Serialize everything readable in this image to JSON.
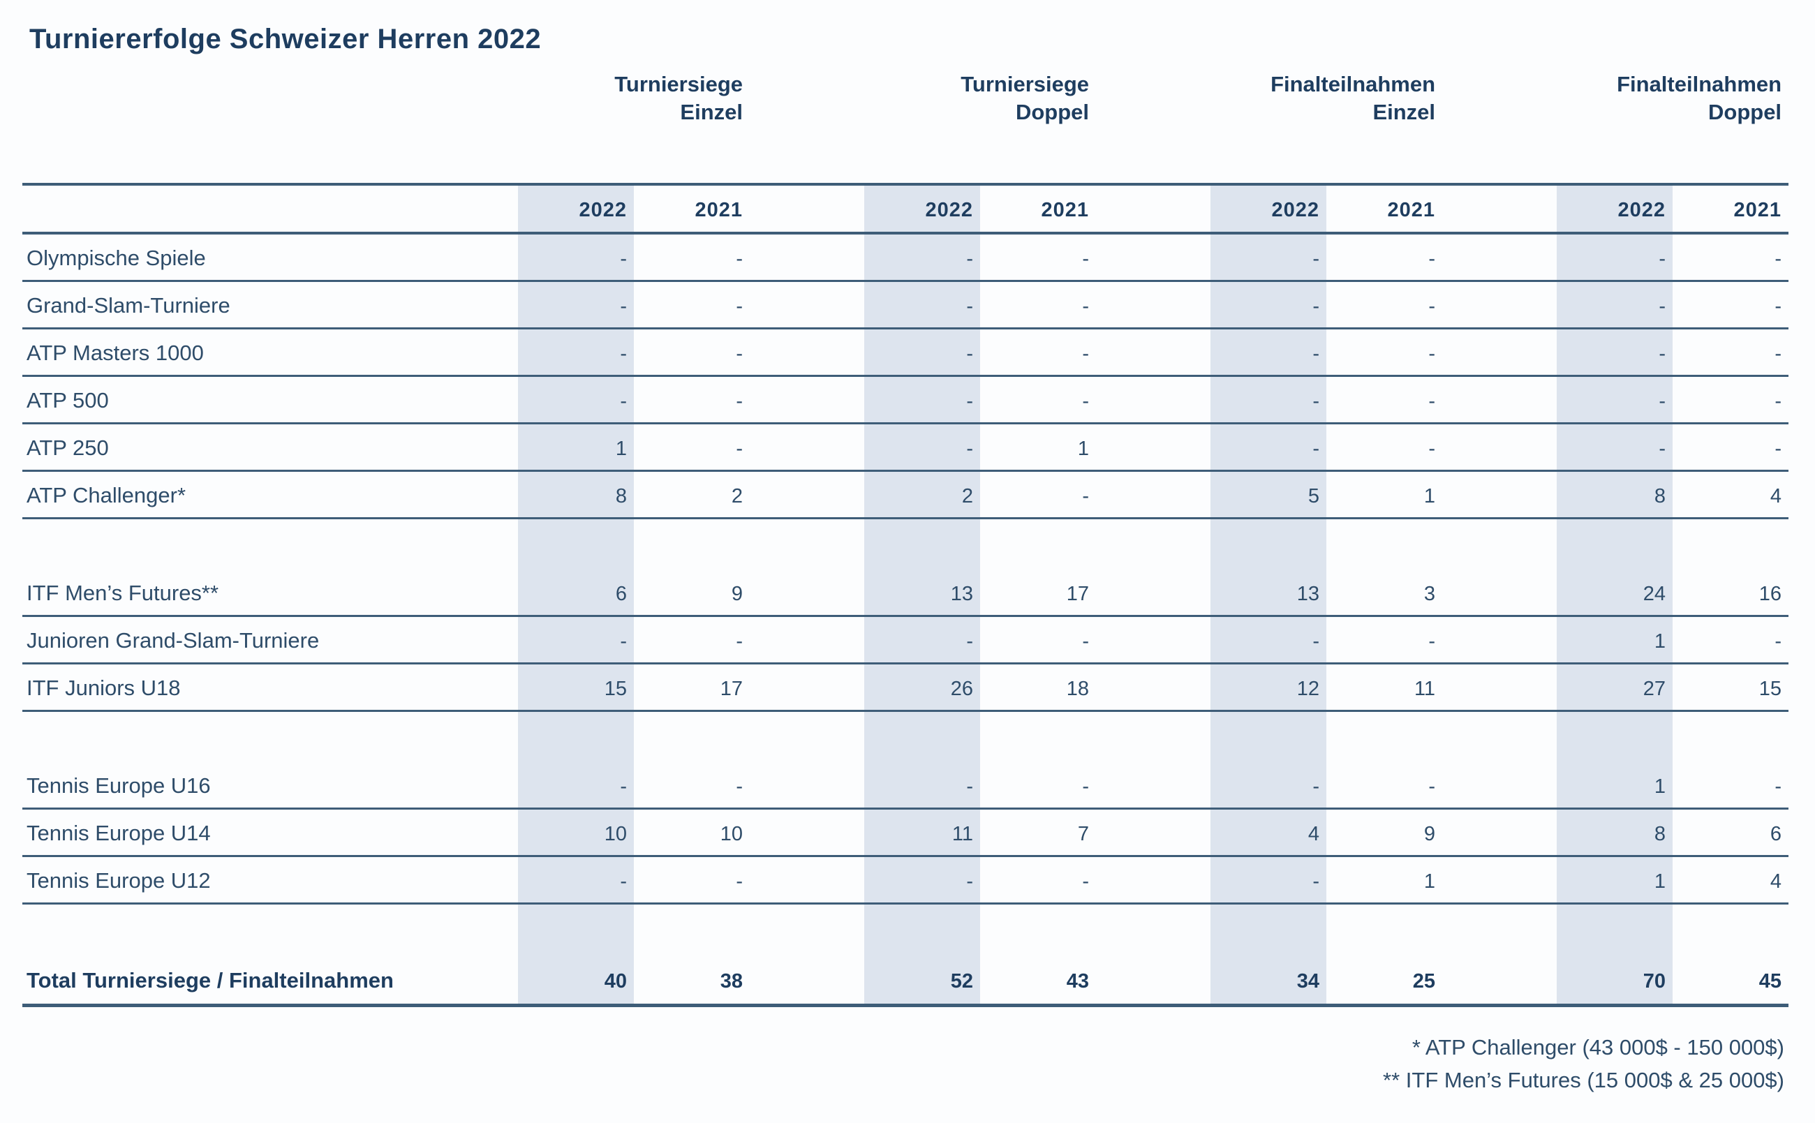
{
  "chart_data": {
    "type": "table",
    "title": "Turniererfolge Schweizer Herren 2022",
    "column_groups": [
      {
        "line1": "Turniersiege",
        "line2": "Einzel"
      },
      {
        "line1": "Turniersiege",
        "line2": "Doppel"
      },
      {
        "line1": "Finalteilnahmen",
        "line2": "Einzel"
      },
      {
        "line1": "Finalteilnahmen",
        "line2": "Doppel"
      }
    ],
    "years": [
      "2022",
      "2021"
    ],
    "rows": [
      {
        "label": "Olympische Spiele",
        "values": [
          "-",
          "-",
          "-",
          "-",
          "-",
          "-",
          "-",
          "-"
        ]
      },
      {
        "label": "Grand-Slam-Turniere",
        "values": [
          "-",
          "-",
          "-",
          "-",
          "-",
          "-",
          "-",
          "-"
        ]
      },
      {
        "label": "ATP Masters 1000",
        "values": [
          "-",
          "-",
          "-",
          "-",
          "-",
          "-",
          "-",
          "-"
        ]
      },
      {
        "label": "ATP 500",
        "values": [
          "-",
          "-",
          "-",
          "-",
          "-",
          "-",
          "-",
          "-"
        ]
      },
      {
        "label": "ATP 250",
        "values": [
          "1",
          "-",
          "-",
          "1",
          "-",
          "-",
          "-",
          "-"
        ]
      },
      {
        "label": "ATP Challenger*",
        "values": [
          "8",
          "2",
          "2",
          "-",
          "5",
          "1",
          "8",
          "4"
        ]
      },
      {
        "label": "ITF Men’s Futures**",
        "values": [
          "6",
          "9",
          "13",
          "17",
          "13",
          "3",
          "24",
          "16"
        ]
      },
      {
        "label": "Junioren Grand-Slam-Turniere",
        "values": [
          "-",
          "-",
          "-",
          "-",
          "-",
          "-",
          "1",
          "-"
        ]
      },
      {
        "label": "ITF Juniors U18",
        "values": [
          "15",
          "17",
          "26",
          "18",
          "12",
          "11",
          "27",
          "15"
        ]
      },
      {
        "label": "Tennis Europe U16",
        "values": [
          "-",
          "-",
          "-",
          "-",
          "-",
          "-",
          "1",
          "-"
        ]
      },
      {
        "label": "Tennis Europe U14",
        "values": [
          "10",
          "10",
          "11",
          "7",
          "4",
          "9",
          "8",
          "6"
        ]
      },
      {
        "label": "Tennis Europe U12",
        "values": [
          "-",
          "-",
          "-",
          "-",
          "-",
          "1",
          "1",
          "4"
        ]
      }
    ],
    "total_row": {
      "label": "Total Turniersiege / Finalteilnahmen",
      "values": [
        "40",
        "38",
        "52",
        "43",
        "34",
        "25",
        "70",
        "45"
      ]
    },
    "footnotes": [
      "* ATP Challenger (43 000$ - 150 000$)",
      "** ITF Men’s Futures (15 000$ & 25 000$)"
    ]
  },
  "colors": {
    "title_text": "#1e3d5f",
    "body_text": "#2e4c69",
    "rule_line": "#3e5d78",
    "band_fill": "#dde4ee",
    "background": "#fcfdfe"
  }
}
